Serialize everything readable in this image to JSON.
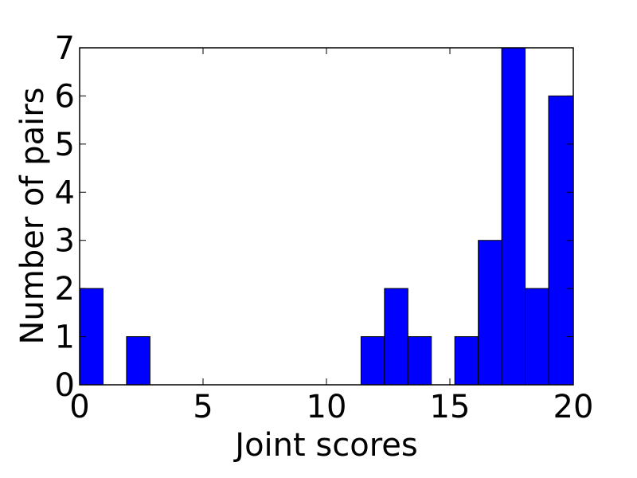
{
  "chart_data": {
    "type": "bar",
    "histogram": true,
    "title": "",
    "xlabel": "Joint scores",
    "ylabel": "Number of pairs",
    "xlim": [
      0,
      20
    ],
    "ylim": [
      0,
      7
    ],
    "x_ticks": [
      "0",
      "5",
      "10",
      "15",
      "20"
    ],
    "y_ticks": [
      "0",
      "1",
      "2",
      "3",
      "4",
      "5",
      "6",
      "7"
    ],
    "grid": false,
    "legend": "none",
    "bin_edges": [
      0,
      0.95,
      1.9,
      2.85,
      3.8,
      4.75,
      5.7,
      6.65,
      7.6,
      8.55,
      9.5,
      10.45,
      11.4,
      12.35,
      13.3,
      14.25,
      15.2,
      16.15,
      17.1,
      18.05,
      19.0,
      20.0
    ],
    "counts": [
      2,
      0,
      1,
      0,
      0,
      0,
      0,
      0,
      0,
      0,
      0,
      0,
      1,
      2,
      1,
      0,
      1,
      3,
      7,
      2,
      6
    ],
    "bar_color": "#0000ff",
    "edge_color": "#000000"
  }
}
